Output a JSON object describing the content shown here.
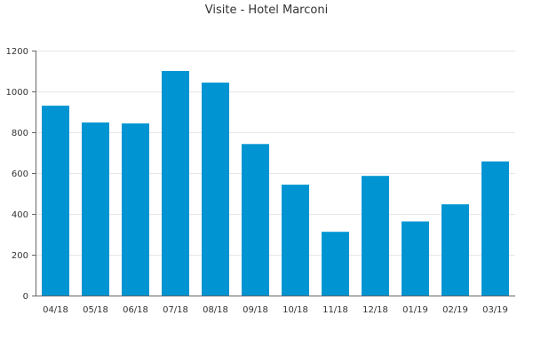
{
  "chart_data": {
    "type": "bar",
    "title": "Visite - Hotel Marconi",
    "xlabel": "",
    "ylabel": "",
    "categories": [
      "04/18",
      "05/18",
      "06/18",
      "07/18",
      "08/18",
      "09/18",
      "10/18",
      "11/18",
      "12/18",
      "01/19",
      "02/19",
      "03/19"
    ],
    "values": [
      930,
      848,
      843,
      1100,
      1043,
      742,
      543,
      312,
      586,
      363,
      447,
      657
    ],
    "ylim": [
      0,
      1200
    ],
    "yticks": [
      0,
      200,
      400,
      600,
      800,
      1000,
      1200
    ],
    "grid": true,
    "legend": "none",
    "colors": {
      "bar": "#0095d2",
      "grid": "#e6e6e6",
      "axis": "#666666",
      "text": "#333333"
    }
  }
}
